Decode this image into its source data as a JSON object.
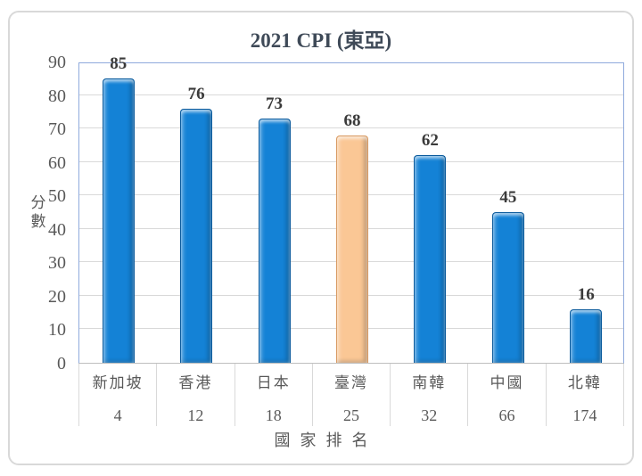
{
  "chart_data": {
    "type": "bar",
    "title": "2021 CPI (東亞)",
    "xlabel": "國家排名",
    "ylabel": "分數",
    "ylim": [
      0,
      90
    ],
    "ytick_step": 10,
    "yticks": [
      0,
      10,
      20,
      30,
      40,
      50,
      60,
      70,
      80,
      90
    ],
    "categories": [
      "新加坡",
      "香港",
      "日本",
      "臺灣",
      "南韓",
      "中國",
      "北韓"
    ],
    "values": [
      85,
      76,
      73,
      68,
      62,
      45,
      16
    ],
    "ranks": [
      4,
      12,
      18,
      25,
      32,
      66,
      174
    ],
    "highlight_index": 3,
    "grid": true,
    "legend": false,
    "colors": {
      "bar_fill": "#1482D6",
      "bar_border": "#0A5A9C",
      "highlight_fill": "#FAC795",
      "highlight_border": "#D99A62",
      "grid_color": "#D9D9D9",
      "plot_border": "#8FAADC",
      "axis_line": "#BFBFBF",
      "frame_border": "#D9D9D9",
      "title_color": "#3F4A58",
      "label_color": "#595959",
      "value_label_color": "#3A3A3A",
      "background": "#FFFFFF"
    }
  }
}
